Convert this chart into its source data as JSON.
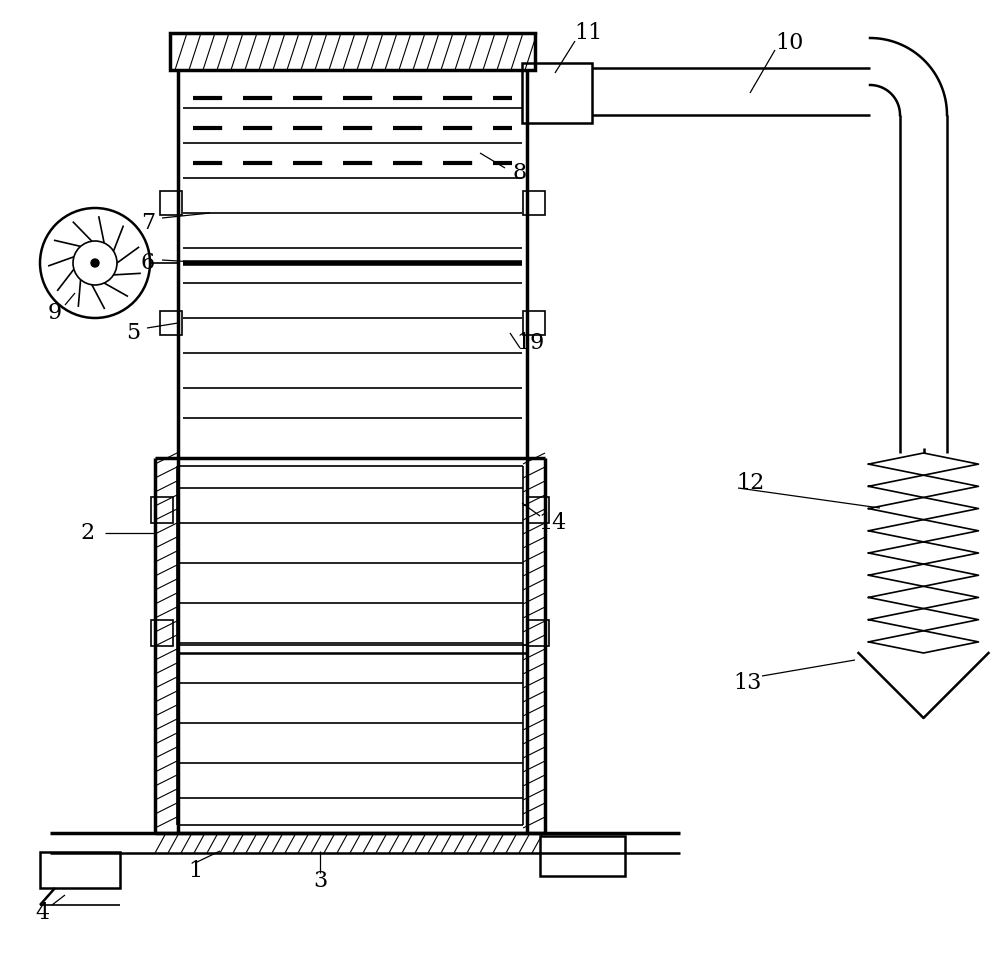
{
  "bg_color": "#ffffff",
  "line_color": "#000000",
  "figsize": [
    10.0,
    9.63
  ],
  "dpi": 100
}
